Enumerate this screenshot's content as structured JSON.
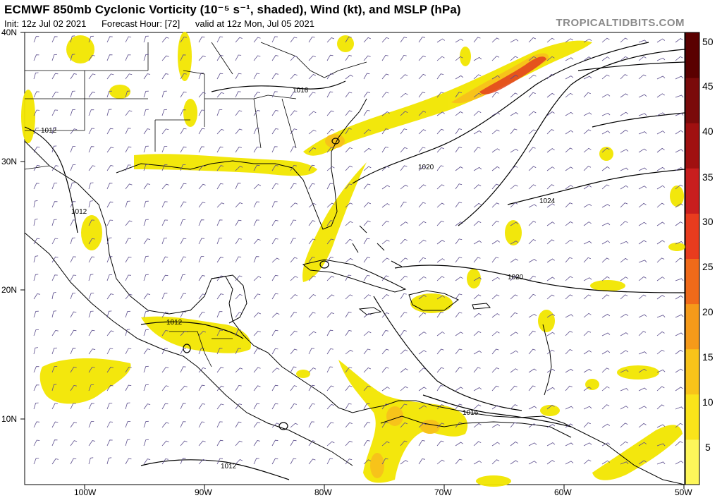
{
  "header": {
    "title": "ECMWF 850mb Cyclonic Vorticity (10⁻⁵ s⁻¹, shaded), Wind (kt), and MSLP (hPa)",
    "init": "Init: 12z Jul 02 2021",
    "forecast_hour": "Forecast Hour: [72]",
    "valid": "valid at 12z Mon, Jul 05 2021",
    "site": "TROPICALTIDBITS.COM"
  },
  "axes": {
    "lat_labels": [
      "40N",
      "30N",
      "20N",
      "10N"
    ],
    "lon_labels": [
      "100W",
      "90W",
      "80W",
      "70W",
      "60W",
      "50W"
    ]
  },
  "colorbar": {
    "labels": [
      "50",
      "45",
      "40",
      "35",
      "30",
      "25",
      "20",
      "15",
      "10",
      "5"
    ],
    "colors": [
      "#5a0000",
      "#7a0a0a",
      "#a01010",
      "#c81e1e",
      "#e83c1e",
      "#f06a1a",
      "#f59a1a",
      "#f8c31a",
      "#fae31a",
      "#fdf65a"
    ]
  },
  "isobars": {
    "labels": [
      "1016",
      "1012",
      "1012",
      "1020",
      "1024",
      "1020",
      "1012",
      "1016",
      "1012"
    ]
  },
  "colors": {
    "vort_low": "#f2e600",
    "vort_mid": "#f7c31a",
    "vort_high": "#e2401f",
    "coast": "#000000",
    "barb": "#5b4d8c"
  }
}
